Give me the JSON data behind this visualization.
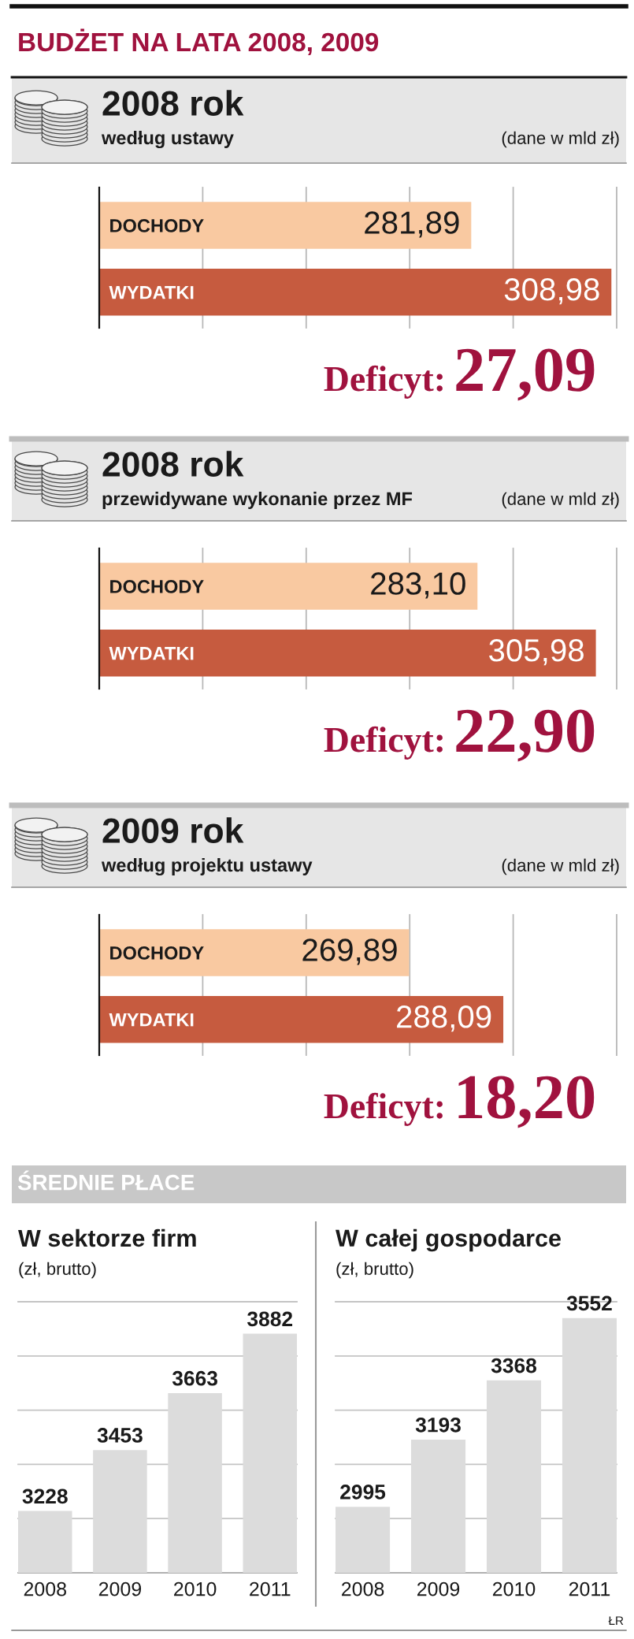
{
  "chart_data": [
    {
      "type": "bar",
      "orientation": "horizontal",
      "title": "2008 rok",
      "subtitle": "według ustawy",
      "annotations": [
        "BUDŻET NA LATA 2008, 2009",
        "(dane w mld zł)",
        "Deficyt:",
        "27,09"
      ],
      "categories": [
        "DOCHODY",
        "WYDATKI"
      ],
      "values": [
        281.89,
        308.98
      ],
      "colors": [
        "#f9c9a1",
        "#c65b3f"
      ],
      "value_labels": [
        "281,89",
        "308,98"
      ],
      "xlim": [
        210,
        310
      ],
      "xticks": [
        {
          "value": 230,
          "label": null
        },
        {
          "value": 250,
          "label": null
        },
        {
          "value": 270,
          "label": null
        },
        {
          "value": 290,
          "label": null
        },
        {
          "value": 310,
          "label": null
        }
      ],
      "grid": "x",
      "tick_labels": "y"
    },
    {
      "type": "bar",
      "orientation": "horizontal",
      "title": "2008 rok",
      "subtitle": "przewidywane wykonanie przez MF",
      "annotations": [
        "(dane w mld zł)",
        "Deficyt:",
        "22,90"
      ],
      "categories": [
        "DOCHODY",
        "WYDATKI"
      ],
      "values": [
        283.1,
        305.98
      ],
      "colors": [
        "#f9c9a1",
        "#c65b3f"
      ],
      "value_labels": [
        "283,10",
        "305,98"
      ],
      "xlim": [
        210,
        310
      ],
      "xticks": [
        {
          "value": 230,
          "label": null
        },
        {
          "value": 250,
          "label": null
        },
        {
          "value": 270,
          "label": null
        },
        {
          "value": 290,
          "label": null
        },
        {
          "value": 310,
          "label": null
        }
      ],
      "grid": "x",
      "tick_labels": "y"
    },
    {
      "type": "bar",
      "orientation": "horizontal",
      "title": "2009 rok",
      "subtitle": "według projektu ustawy",
      "annotations": [
        "(dane w mld zł)",
        "Deficyt:",
        "18,20"
      ],
      "categories": [
        "DOCHODY",
        "WYDATKI"
      ],
      "values": [
        269.89,
        288.09
      ],
      "colors": [
        "#f9c9a1",
        "#c65b3f"
      ],
      "value_labels": [
        "269,89",
        "288,09"
      ],
      "xlim": [
        210,
        310
      ],
      "xticks": [
        {
          "value": 230,
          "label": null
        },
        {
          "value": 250,
          "label": null
        },
        {
          "value": 270,
          "label": null
        },
        {
          "value": 290,
          "label": null
        },
        {
          "value": 310,
          "label": null
        }
      ],
      "grid": "x",
      "tick_labels": "y"
    },
    {
      "type": "bar",
      "title": "W sektorze firm",
      "subtitle": "(zł, brutto)",
      "annotations": [
        "ŚREDNIE PŁACE"
      ],
      "categories": [
        "2008",
        "2009",
        "2010",
        "2011"
      ],
      "values": [
        3228,
        3453,
        3663,
        3882
      ],
      "color": "#dcdcdc",
      "data_labels": true,
      "ylim": [
        3000,
        4000
      ],
      "yticks": [
        {
          "value": 3200,
          "label": null
        },
        {
          "value": 3400,
          "label": null
        },
        {
          "value": 3600,
          "label": null
        },
        {
          "value": 3800,
          "label": null
        },
        {
          "value": 4000,
          "label": null
        }
      ],
      "grid": "y",
      "tick_labels": "x"
    },
    {
      "type": "bar",
      "title": "W całej gospodarce",
      "subtitle": "(zł, brutto)",
      "annotations": [
        "ŁR"
      ],
      "categories": [
        "2008",
        "2009",
        "2010",
        "2011"
      ],
      "values": [
        2995,
        3193,
        3368,
        3552
      ],
      "color": "#dcdcdc",
      "data_labels": true,
      "ylim": [
        2800,
        3600
      ],
      "yticks": [
        {
          "value": 2960,
          "label": null
        },
        {
          "value": 3120,
          "label": null
        },
        {
          "value": 3280,
          "label": null
        },
        {
          "value": 3440,
          "label": null
        },
        {
          "value": 3600,
          "label": null
        }
      ],
      "grid": "y",
      "tick_labels": "x"
    }
  ]
}
